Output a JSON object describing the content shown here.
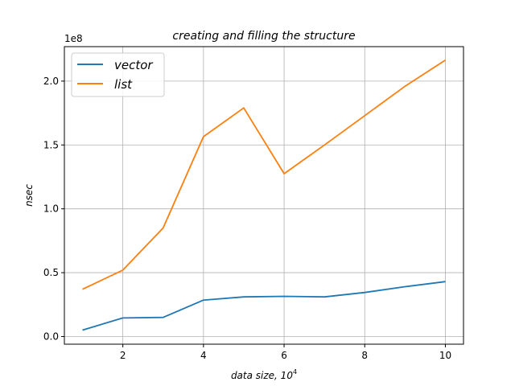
{
  "chart_data": {
    "type": "line",
    "title": "creating and filling the structure",
    "xlabel_main": "data size, 10",
    "xlabel_exp": "4",
    "ylabel": "nsec",
    "y_offset_label": "1e8",
    "x": [
      1,
      2,
      3,
      4,
      5,
      6,
      7,
      8,
      9,
      10
    ],
    "xlim": [
      0.55,
      10.45
    ],
    "ylim": [
      -0.06,
      2.27
    ],
    "x_ticks": [
      {
        "value": 2,
        "label": "2"
      },
      {
        "value": 4,
        "label": "4"
      },
      {
        "value": 6,
        "label": "6"
      },
      {
        "value": 8,
        "label": "8"
      },
      {
        "value": 10,
        "label": "10"
      }
    ],
    "y_ticks": [
      {
        "value": 0.0,
        "label": "0.0"
      },
      {
        "value": 0.5,
        "label": "0.5"
      },
      {
        "value": 1.0,
        "label": "1.0"
      },
      {
        "value": 1.5,
        "label": "1.5"
      },
      {
        "value": 2.0,
        "label": "2.0"
      }
    ],
    "grid": true,
    "legend_position": "top-left",
    "series": [
      {
        "name": "vector",
        "color": "#1f77b4",
        "values": [
          0.05,
          0.145,
          0.15,
          0.285,
          0.31,
          0.315,
          0.31,
          0.345,
          0.39,
          0.43
        ]
      },
      {
        "name": "list",
        "color": "#ff7f0e",
        "values": [
          0.37,
          0.52,
          0.85,
          1.565,
          1.79,
          1.275,
          1.5,
          1.73,
          1.96,
          2.165
        ]
      }
    ]
  }
}
